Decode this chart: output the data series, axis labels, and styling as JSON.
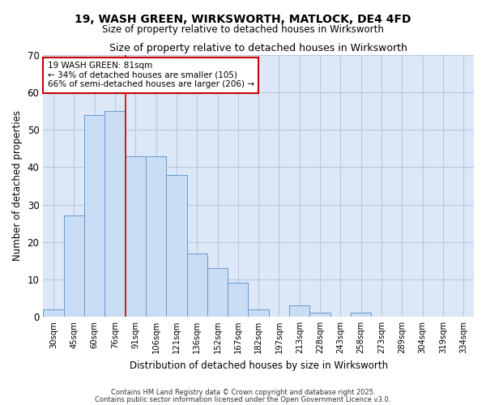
{
  "title_line1": "19, WASH GREEN, WIRKSWORTH, MATLOCK, DE4 4FD",
  "title_line2": "Size of property relative to detached houses in Wirksworth",
  "xlabel": "Distribution of detached houses by size in Wirksworth",
  "ylabel": "Number of detached properties",
  "bar_labels": [
    "30sqm",
    "45sqm",
    "60sqm",
    "76sqm",
    "91sqm",
    "106sqm",
    "121sqm",
    "136sqm",
    "152sqm",
    "167sqm",
    "182sqm",
    "197sqm",
    "213sqm",
    "228sqm",
    "243sqm",
    "258sqm",
    "273sqm",
    "289sqm",
    "304sqm",
    "319sqm",
    "334sqm"
  ],
  "bar_values": [
    2,
    27,
    54,
    55,
    43,
    43,
    38,
    17,
    13,
    9,
    2,
    0,
    3,
    1,
    0,
    1,
    0,
    0,
    0,
    0,
    0
  ],
  "bar_color": "#c9ddf5",
  "bar_edge_color": "#6699cc",
  "grid_color": "#b8c8e0",
  "plot_bg_color": "#dce8f8",
  "fig_bg_color": "#ffffff",
  "red_line_x": 3.5,
  "annotation_title": "19 WASH GREEN: 81sqm",
  "annotation_line2": "← 34% of detached houses are smaller (105)",
  "annotation_line3": "66% of semi-detached houses are larger (206) →",
  "annotation_box_color": "#ffffff",
  "annotation_box_edge": "#cc0000",
  "red_line_color": "#cc0000",
  "footer_line1": "Contains HM Land Registry data © Crown copyright and database right 2025.",
  "footer_line2": "Contains public sector information licensed under the Open Government Licence v3.0.",
  "ylim": [
    0,
    70
  ],
  "yticks": [
    0,
    10,
    20,
    30,
    40,
    50,
    60,
    70
  ]
}
